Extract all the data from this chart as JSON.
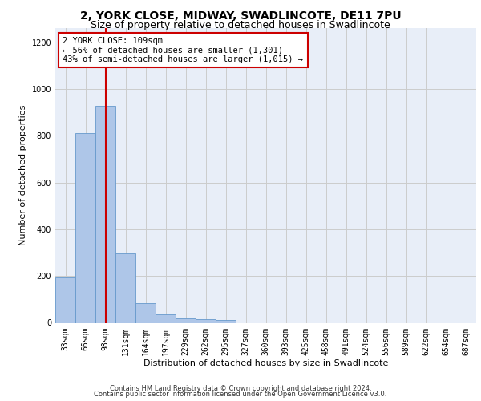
{
  "title_line1": "2, YORK CLOSE, MIDWAY, SWADLINCOTE, DE11 7PU",
  "title_line2": "Size of property relative to detached houses in Swadlincote",
  "annotation_line1": "2 YORK CLOSE: 109sqm",
  "annotation_line2": "← 56% of detached houses are smaller (1,301)",
  "annotation_line3": "43% of semi-detached houses are larger (1,015) →",
  "xlabel": "Distribution of detached houses by size in Swadlincote",
  "ylabel": "Number of detached properties",
  "footnote1": "Contains HM Land Registry data © Crown copyright and database right 2024.",
  "footnote2": "Contains public sector information licensed under the Open Government Licence v3.0.",
  "bin_labels": [
    "33sqm",
    "66sqm",
    "98sqm",
    "131sqm",
    "164sqm",
    "197sqm",
    "229sqm",
    "262sqm",
    "295sqm",
    "327sqm",
    "360sqm",
    "393sqm",
    "425sqm",
    "458sqm",
    "491sqm",
    "524sqm",
    "556sqm",
    "589sqm",
    "622sqm",
    "654sqm",
    "687sqm"
  ],
  "bar_values": [
    193,
    810,
    928,
    295,
    85,
    35,
    20,
    15,
    12,
    0,
    0,
    0,
    0,
    0,
    0,
    0,
    0,
    0,
    0,
    0,
    0
  ],
  "bar_color": "#aec6e8",
  "bar_edge_color": "#6699cc",
  "vline_x": 2.0,
  "vline_color": "#cc0000",
  "annotation_box_color": "#cc0000",
  "ylim": [
    0,
    1260
  ],
  "yticks": [
    0,
    200,
    400,
    600,
    800,
    1000,
    1200
  ],
  "grid_color": "#cccccc",
  "bg_color": "#e8eef8",
  "title_fontsize": 10,
  "subtitle_fontsize": 9,
  "axis_label_fontsize": 8,
  "tick_fontsize": 7,
  "annotation_fontsize": 7.5,
  "footnote_fontsize": 6
}
